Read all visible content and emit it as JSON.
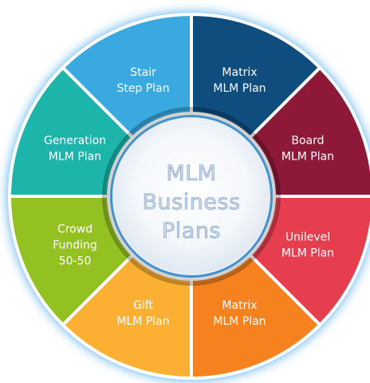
{
  "center": {
    "title_lines": [
      "MLM",
      "Business",
      "Plans"
    ]
  },
  "segments": [
    {
      "id": "stair-step-plan",
      "lines": [
        "Stair",
        "Step Plan"
      ],
      "color": "#39A9E0"
    },
    {
      "id": "matrix-mlm-plan-top",
      "lines": [
        "Matrix",
        "MLM Plan"
      ],
      "color": "#0E4D7E"
    },
    {
      "id": "board-mlm-plan",
      "lines": [
        "Board",
        "MLM Plan"
      ],
      "color": "#8E1838"
    },
    {
      "id": "unilevel-mlm-plan",
      "lines": [
        "Unilevel",
        "MLM Plan"
      ],
      "color": "#E63E4F"
    },
    {
      "id": "matrix-mlm-plan-bottom",
      "lines": [
        "Matrix",
        "MLM Plan"
      ],
      "color": "#F5821F"
    },
    {
      "id": "gift-mlm-plan",
      "lines": [
        "Gift",
        "MLM Plan"
      ],
      "color": "#FBB034"
    },
    {
      "id": "crowd-funding-50-50",
      "lines": [
        "Crowd",
        "Funding",
        "50-50"
      ],
      "color": "#94C122"
    },
    {
      "id": "generation-mlm-plan",
      "lines": [
        "Generation",
        "MLM Plan"
      ],
      "color": "#1DB5A9"
    }
  ],
  "colors": {
    "glow": "#2F9BE8",
    "divider": "#ffffff"
  }
}
